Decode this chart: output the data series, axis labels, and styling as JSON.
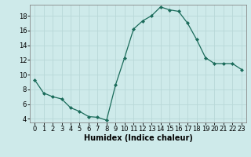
{
  "x": [
    0,
    1,
    2,
    3,
    4,
    5,
    6,
    7,
    8,
    9,
    10,
    11,
    12,
    13,
    14,
    15,
    16,
    17,
    18,
    19,
    20,
    21,
    22,
    23
  ],
  "y": [
    9.3,
    7.5,
    7.0,
    6.7,
    5.5,
    5.0,
    4.3,
    4.2,
    3.8,
    8.6,
    12.3,
    16.2,
    17.3,
    18.0,
    19.2,
    18.8,
    18.6,
    17.0,
    14.8,
    12.3,
    11.5,
    11.5,
    11.5,
    10.7
  ],
  "line_color": "#1a6b5a",
  "marker": "D",
  "marker_size": 2,
  "bg_color": "#ceeaea",
  "grid_color": "#b8d8d8",
  "xlabel": "Humidex (Indice chaleur)",
  "xlim": [
    -0.5,
    23.5
  ],
  "ylim": [
    3.5,
    19.5
  ],
  "yticks": [
    4,
    6,
    8,
    10,
    12,
    14,
    16,
    18
  ],
  "xticks": [
    0,
    1,
    2,
    3,
    4,
    5,
    6,
    7,
    8,
    9,
    10,
    11,
    12,
    13,
    14,
    15,
    16,
    17,
    18,
    19,
    20,
    21,
    22,
    23
  ],
  "tick_fontsize": 6,
  "label_fontsize": 7
}
